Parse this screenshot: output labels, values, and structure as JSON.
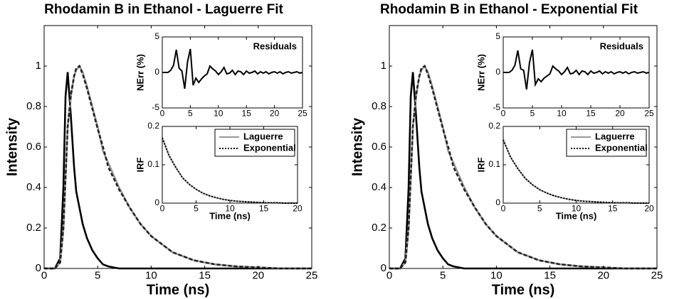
{
  "chart_data": [
    {
      "type": "line",
      "title": "Rhodamin B in Ethanol - Laguerre Fit",
      "xlabel": "Time (ns)",
      "ylabel": "Intensity",
      "xlim": [
        0,
        25
      ],
      "ylim": [
        0,
        1.2
      ],
      "xticks": [
        0,
        5,
        10,
        15,
        20,
        25
      ],
      "yticks": [
        0,
        0.2,
        0.4,
        0.6,
        0.8,
        1
      ],
      "x": [
        0,
        1,
        1.5,
        1.8,
        2,
        2.2,
        2.5,
        2.8,
        3,
        3.3,
        3.6,
        4,
        4.5,
        5,
        5.5,
        6,
        7,
        8,
        9,
        10,
        11,
        12,
        13,
        14,
        15,
        16,
        18,
        20,
        22,
        25
      ],
      "series": [
        {
          "color": "#000000",
          "style": "solid",
          "values": [
            0,
            0,
            0.05,
            0.4,
            0.85,
            0.97,
            0.75,
            0.5,
            0.38,
            0.3,
            0.22,
            0.15,
            0.09,
            0.05,
            0.02,
            0.01,
            0,
            0,
            0,
            0,
            0,
            0,
            0,
            0,
            0,
            0,
            0,
            0,
            0,
            0
          ]
        },
        {
          "color": "#999999",
          "style": "solid",
          "values": [
            0,
            0,
            0.03,
            0.2,
            0.45,
            0.7,
            0.85,
            0.95,
            0.98,
            1,
            0.97,
            0.9,
            0.8,
            0.7,
            0.58,
            0.52,
            0.4,
            0.3,
            0.22,
            0.16,
            0.12,
            0.08,
            0.06,
            0.04,
            0.03,
            0.02,
            0.01,
            0.005,
            0,
            0
          ]
        },
        {
          "color": "#222222",
          "style": "dashed",
          "values": [
            0,
            0,
            0.03,
            0.2,
            0.45,
            0.7,
            0.86,
            0.95,
            0.99,
            1,
            0.96,
            0.89,
            0.79,
            0.69,
            0.6,
            0.5,
            0.39,
            0.3,
            0.22,
            0.16,
            0.12,
            0.08,
            0.06,
            0.04,
            0.03,
            0.02,
            0.01,
            0.005,
            0,
            0
          ]
        }
      ]
    },
    {
      "type": "line",
      "annotation": "Residuals",
      "ylabel": "NErr (%)",
      "xlim": [
        0,
        25
      ],
      "ylim": [
        -5,
        5
      ],
      "xticks": [
        0,
        5,
        10,
        15,
        20,
        25
      ],
      "yticks": [
        -5,
        0,
        5
      ],
      "x": [
        0,
        0.5,
        1,
        1.5,
        2,
        2.5,
        3,
        3.5,
        4,
        4.5,
        5,
        5.5,
        6,
        6.5,
        7,
        7.5,
        8,
        8.5,
        9,
        9.5,
        10,
        10.5,
        11,
        11.5,
        12,
        12.5,
        13,
        13.5,
        14,
        14.5,
        15,
        15.5,
        16,
        16.5,
        17,
        17.5,
        18,
        18.5,
        19,
        19.5,
        20,
        20.5,
        21,
        21.5,
        22,
        22.5,
        23,
        23.5,
        24,
        24.5,
        25
      ],
      "series": [
        {
          "color": "#000000",
          "style": "solid",
          "values": [
            0,
            0,
            0,
            0.3,
            1,
            3.2,
            0.6,
            0.2,
            -2.3,
            1.5,
            3.3,
            -1.8,
            -0.8,
            -1.4,
            -0.9,
            -0.5,
            -0.2,
            0.9,
            0.5,
            0.2,
            -0.3,
            0.1,
            0.7,
            -0.2,
            -0.1,
            0.3,
            -0.3,
            0.2,
            0.1,
            -0.3,
            0.2,
            -0.1,
            0,
            0.2,
            -0.2,
            0.1,
            -0.1,
            0.1,
            -0.2,
            0,
            0.1,
            -0.1,
            0.1,
            -0.2,
            0,
            0.1,
            -0.1,
            0,
            0.1,
            -0.1,
            0
          ]
        }
      ]
    },
    {
      "type": "line",
      "xlabel": "Time (ns)",
      "ylabel": "IRF",
      "legend": "upper right",
      "xlim": [
        0,
        20
      ],
      "ylim": [
        0,
        0.2
      ],
      "xticks": [
        0,
        5,
        10,
        15,
        20
      ],
      "yticks": [
        0,
        0.1,
        0.2
      ],
      "x": [
        0,
        1,
        2,
        3,
        4,
        5,
        6,
        7,
        8,
        9,
        10,
        11,
        12,
        13,
        14,
        15,
        16,
        17,
        18,
        19,
        20
      ],
      "series": [
        {
          "name": "Laguerre",
          "color": "#999999",
          "style": "solid",
          "values": [
            0.17,
            0.124,
            0.093,
            0.066,
            0.049,
            0.036,
            0.026,
            0.019,
            0.014,
            0.01,
            0.007,
            0.005,
            0.004,
            0.003,
            0.002,
            0.001,
            0.001,
            0.001,
            0,
            0,
            0
          ]
        },
        {
          "name": "Exponential",
          "color": "#000000",
          "style": "dotted",
          "values": [
            0.17,
            0.124,
            0.093,
            0.066,
            0.049,
            0.036,
            0.026,
            0.019,
            0.014,
            0.01,
            0.007,
            0.005,
            0.004,
            0.003,
            0.002,
            0.001,
            0.001,
            0.001,
            0,
            0,
            0
          ]
        }
      ]
    },
    {
      "type": "line",
      "title": "Rhodamin B in Ethanol - Exponential Fit",
      "xlabel": "Time (ns)",
      "ylabel": "Intensity",
      "xlim": [
        0,
        25
      ],
      "ylim": [
        0,
        1.2
      ],
      "xticks": [
        0,
        5,
        10,
        15,
        20,
        25
      ],
      "yticks": [
        0,
        0.2,
        0.4,
        0.6,
        0.8,
        1
      ],
      "x": [
        0,
        1,
        1.5,
        1.8,
        2,
        2.2,
        2.5,
        2.8,
        3,
        3.3,
        3.6,
        4,
        4.5,
        5,
        5.5,
        6,
        7,
        8,
        9,
        10,
        11,
        12,
        13,
        14,
        15,
        16,
        18,
        20,
        22,
        25
      ],
      "series": [
        {
          "color": "#000000",
          "style": "solid",
          "values": [
            0,
            0,
            0.05,
            0.4,
            0.85,
            0.97,
            0.75,
            0.5,
            0.38,
            0.3,
            0.22,
            0.15,
            0.09,
            0.05,
            0.02,
            0.01,
            0,
            0,
            0,
            0,
            0,
            0,
            0,
            0,
            0,
            0,
            0,
            0,
            0,
            0
          ]
        },
        {
          "color": "#999999",
          "style": "solid",
          "values": [
            0,
            0,
            0.03,
            0.2,
            0.45,
            0.7,
            0.85,
            0.95,
            0.98,
            1,
            0.97,
            0.9,
            0.8,
            0.7,
            0.58,
            0.52,
            0.4,
            0.3,
            0.22,
            0.16,
            0.12,
            0.08,
            0.06,
            0.04,
            0.03,
            0.02,
            0.01,
            0.005,
            0,
            0
          ]
        },
        {
          "color": "#222222",
          "style": "dashed",
          "values": [
            0,
            0,
            0.03,
            0.2,
            0.45,
            0.7,
            0.86,
            0.95,
            0.99,
            1,
            0.96,
            0.89,
            0.79,
            0.69,
            0.6,
            0.5,
            0.39,
            0.3,
            0.22,
            0.16,
            0.12,
            0.08,
            0.06,
            0.04,
            0.03,
            0.02,
            0.01,
            0.005,
            0,
            0
          ]
        }
      ]
    },
    {
      "type": "line",
      "annotation": "Residuals",
      "ylabel": "NErr (%)",
      "xlim": [
        0,
        25
      ],
      "ylim": [
        -5,
        5
      ],
      "xticks": [
        0,
        5,
        10,
        15,
        20,
        25
      ],
      "yticks": [
        -5,
        0,
        5
      ],
      "x": [
        0,
        0.5,
        1,
        1.5,
        2,
        2.5,
        3,
        3.5,
        4,
        4.5,
        5,
        5.5,
        6,
        6.5,
        7,
        7.5,
        8,
        8.5,
        9,
        9.5,
        10,
        10.5,
        11,
        11.5,
        12,
        12.5,
        13,
        13.5,
        14,
        14.5,
        15,
        15.5,
        16,
        16.5,
        17,
        17.5,
        18,
        18.5,
        19,
        19.5,
        20,
        20.5,
        21,
        21.5,
        22,
        22.5,
        23,
        23.5,
        24,
        24.5,
        25
      ],
      "series": [
        {
          "color": "#000000",
          "style": "solid",
          "values": [
            0,
            0,
            0,
            0.3,
            1,
            3.1,
            0.5,
            0.3,
            -2.4,
            1.4,
            3.2,
            -1.7,
            -0.9,
            -1.3,
            -0.8,
            -0.5,
            -0.2,
            0.9,
            0.5,
            0.2,
            -0.3,
            0.1,
            0.7,
            -0.2,
            -0.1,
            0.3,
            -0.3,
            0.2,
            0.1,
            -0.3,
            0.2,
            -0.1,
            0,
            0.2,
            -0.2,
            0.1,
            -0.1,
            0.1,
            -0.2,
            0,
            0.1,
            -0.1,
            0.1,
            -0.2,
            0,
            0.1,
            -0.1,
            0,
            0.1,
            -0.1,
            0
          ]
        }
      ]
    },
    {
      "type": "line",
      "xlabel": "Time (ns)",
      "ylabel": "IRF",
      "legend": "upper right",
      "xlim": [
        0,
        20
      ],
      "ylim": [
        0,
        0.2
      ],
      "xticks": [
        0,
        5,
        10,
        15,
        20
      ],
      "yticks": [
        0,
        0.1,
        0.2
      ],
      "x": [
        0,
        1,
        2,
        3,
        4,
        5,
        6,
        7,
        8,
        9,
        10,
        11,
        12,
        13,
        14,
        15,
        16,
        17,
        18,
        19,
        20
      ],
      "series": [
        {
          "name": "Laguerre",
          "color": "#999999",
          "style": "solid",
          "values": [
            0.165,
            0.12,
            0.09,
            0.065,
            0.048,
            0.035,
            0.026,
            0.019,
            0.014,
            0.01,
            0.007,
            0.005,
            0.004,
            0.003,
            0.002,
            0.001,
            0.001,
            0.001,
            0,
            0,
            0
          ]
        },
        {
          "name": "Exponential",
          "color": "#000000",
          "style": "dotted",
          "values": [
            0.165,
            0.12,
            0.09,
            0.065,
            0.048,
            0.035,
            0.026,
            0.019,
            0.014,
            0.01,
            0.007,
            0.005,
            0.004,
            0.003,
            0.002,
            0.001,
            0.001,
            0.001,
            0,
            0,
            0
          ]
        }
      ]
    }
  ]
}
